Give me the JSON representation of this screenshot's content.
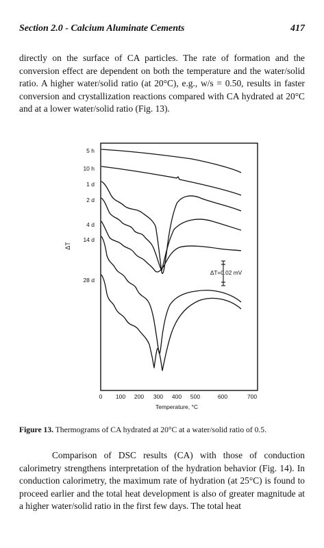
{
  "header": {
    "section_title": "Section 2.0 - Calcium Aluminate Cements",
    "page_number": "417"
  },
  "paragraph_1": "directly on the surface of CA particles. The rate of formation and the conversion effect are dependent on both the temperature and the water/solid ratio. A higher water/solid ratio (at 20°C), e.g., w/s = 0.50, results in faster conversion and crystallization reactions compared with CA hydrated at 20°C and at a lower water/solid ratio (Fig. 13).",
  "figure": {
    "caption_label": "Figure 13.",
    "caption_text": " Thermograms of CA hydrated at 20°C at a water/solid ratio of 0.5.",
    "y_axis_label": "ΔT",
    "x_axis_label": "Temperature, °C",
    "scale_label": "ΔT=0.02 mV",
    "curve_labels": [
      "5 h",
      "10 h",
      "1 d",
      "2 d",
      "4 d",
      "14 d",
      "28 d"
    ],
    "x_ticks": [
      "0",
      "100",
      "200",
      "300",
      "400",
      "500",
      "600",
      "700"
    ]
  },
  "paragraph_2": "Comparison of DSC results (CA) with those of conduction calorimetry strengthens interpretation of the hydration behavior (Fig. 14). In conduction calorimetry, the maximum rate of hydration (at 25°C) is found to proceed earlier and the total heat development is also of greater magnitude at a higher water/solid ratio in the first few days. The total heat"
}
